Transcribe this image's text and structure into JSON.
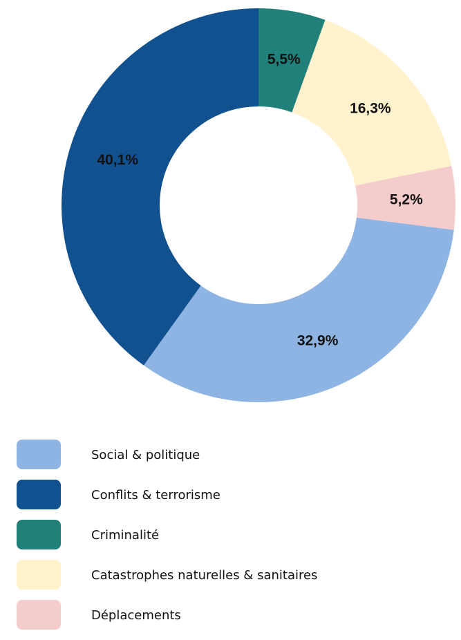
{
  "chart_data": {
    "type": "pie",
    "variant": "donut",
    "series": [
      {
        "name": "Social & politique",
        "value": 32.9,
        "label": "32,9%",
        "color": "#8eb4e3"
      },
      {
        "name": "Conflits & terrorisme",
        "value": 40.1,
        "label": "40,1%",
        "color": "#12518f"
      },
      {
        "name": "Criminalité",
        "value": 5.5,
        "label": "5,5%",
        "color": "#21807a"
      },
      {
        "name": "Catastrophes naturelles & sanitaires",
        "value": 16.3,
        "label": "16,3%",
        "color": "#fff2cc"
      },
      {
        "name": "Déplacements",
        "value": 5.2,
        "label": "5,2%",
        "color": "#f4cccc"
      }
    ],
    "slice_order_clockwise_from_top": [
      "Criminalité",
      "Catastrophes naturelles & sanitaires",
      "Déplacements",
      "Social & politique",
      "Conflits & terrorisme"
    ],
    "legend_position": "bottom-left"
  }
}
